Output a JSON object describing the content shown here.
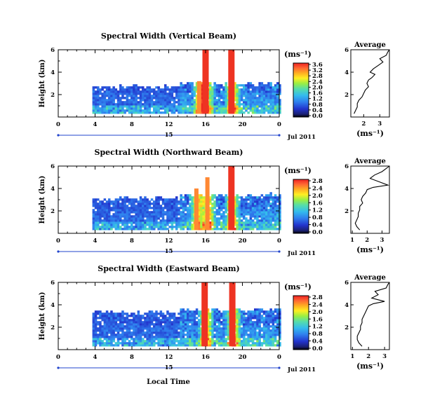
{
  "figure": {
    "xlabel": "Local Time",
    "date_label": "Jul 2011",
    "day_label": "15",
    "x_ticks": [
      "0",
      "4",
      "8",
      "12",
      "16",
      "20",
      "0"
    ],
    "y_ticks": [
      "2",
      "4",
      "6"
    ],
    "ylabel": "Height (km)",
    "unit_label": "(ms⁻¹)",
    "average_title": "Average",
    "colors": {
      "red": "#ee3322",
      "orange": "#ff8833",
      "yellow": "#ffee22",
      "green": "#66dd66",
      "cyan": "#33bbee",
      "blue": "#2255ee",
      "navy": "#1a1f70",
      "black": "#000000"
    }
  },
  "panels": [
    {
      "title": "Spectral Width (Vertical Beam)",
      "colorbar_ticks": [
        "0.0",
        "0.4",
        "0.8",
        "1.2",
        "1.6",
        "2.0",
        "2.4",
        "2.8",
        "3.2",
        "3.6"
      ],
      "avg_ticks": [
        "2",
        "3"
      ]
    },
    {
      "title": "Spectral Width (Northward Beam)",
      "colorbar_ticks": [
        "0.0",
        "0.4",
        "0.8",
        "1.2",
        "1.6",
        "2.0",
        "2.4",
        "2.8"
      ],
      "avg_ticks": [
        "1",
        "2",
        "3"
      ]
    },
    {
      "title": "Spectral Width (Eastward Beam)",
      "colorbar_ticks": [
        "0.0",
        "0.4",
        "0.8",
        "1.2",
        "1.6",
        "2.0",
        "2.4",
        "2.8"
      ],
      "avg_ticks": [
        "1",
        "2",
        "3"
      ]
    }
  ],
  "chart_data": [
    {
      "type": "heatmap",
      "title": "Spectral Width (Vertical Beam)",
      "xlabel": "",
      "ylabel": "Height (km)",
      "x_unit": "local time (h), Jul 15 2011",
      "xlim": [
        0,
        24
      ],
      "ylim": [
        0,
        6
      ],
      "colorbar": {
        "label": "(ms⁻¹)",
        "range": [
          0.0,
          3.6
        ]
      },
      "data_extent": {
        "time": [
          3.7,
          24
        ],
        "height": [
          0.3,
          2.6
        ]
      },
      "high_width_columns": [
        {
          "time": 15.3,
          "height": [
            0.3,
            3.2
          ],
          "width": "1.6-2.4"
        },
        {
          "time": 16.0,
          "height": [
            0.3,
            6.0
          ],
          "width": ">=3.6"
        },
        {
          "time": 18.8,
          "height": [
            0.3,
            6.0
          ],
          "width": ">=3.6"
        }
      ],
      "average_profile": {
        "title": "Average",
        "xlabel": "(ms⁻¹)",
        "xlim": [
          1.2,
          3.6
        ],
        "ylim": [
          0,
          6
        ],
        "x": [
          1.4,
          1.5,
          1.6,
          1.6,
          1.7,
          1.9,
          2.0,
          2.1,
          2.3,
          2.2,
          2.3,
          2.5,
          2.7,
          2.4,
          2.6,
          2.9,
          3.2,
          3.0,
          3.4,
          3.5,
          3.6
        ],
        "y": [
          0.3,
          0.6,
          0.9,
          1.2,
          1.5,
          1.8,
          2.1,
          2.4,
          2.7,
          3.0,
          3.3,
          3.5,
          3.8,
          4.0,
          4.3,
          4.6,
          4.9,
          5.2,
          5.5,
          5.8,
          6.0
        ]
      }
    },
    {
      "type": "heatmap",
      "title": "Spectral Width (Northward Beam)",
      "xlabel": "",
      "ylabel": "Height (km)",
      "x_unit": "local time (h), Jul 15 2011",
      "xlim": [
        0,
        24
      ],
      "ylim": [
        0,
        6
      ],
      "colorbar": {
        "label": "(ms⁻¹)",
        "range": [
          0.0,
          2.8
        ]
      },
      "data_extent": {
        "time": [
          3.7,
          24
        ],
        "height": [
          0.3,
          3.0
        ]
      },
      "high_width_columns": [
        {
          "time": 15.0,
          "height": [
            0.3,
            4.0
          ],
          "width": "1.6-2.4"
        },
        {
          "time": 16.2,
          "height": [
            0.3,
            5.0
          ],
          "width": "2.0-2.8"
        },
        {
          "time": 18.8,
          "height": [
            0.3,
            6.0
          ],
          "width": ">=2.8"
        }
      ],
      "average_profile": {
        "title": "Average",
        "xlabel": "(ms⁻¹)",
        "xlim": [
          0.9,
          3.5
        ],
        "ylim": [
          0,
          6
        ],
        "x": [
          1.5,
          1.3,
          1.2,
          1.3,
          1.4,
          1.4,
          1.5,
          1.5,
          1.7,
          1.6,
          1.7,
          1.9,
          2.0,
          2.4,
          3.4,
          2.8,
          2.2,
          2.5,
          3.0,
          3.3,
          3.5
        ],
        "y": [
          0.3,
          0.6,
          0.9,
          1.2,
          1.5,
          1.8,
          2.1,
          2.4,
          2.7,
          3.0,
          3.3,
          3.6,
          3.9,
          4.1,
          4.3,
          4.6,
          4.9,
          5.2,
          5.5,
          5.8,
          6.0
        ]
      }
    },
    {
      "type": "heatmap",
      "title": "Spectral Width (Eastward Beam)",
      "xlabel": "Local Time",
      "ylabel": "Height (km)",
      "x_unit": "local time (h), Jul 15 2011",
      "xlim": [
        0,
        24
      ],
      "ylim": [
        0,
        6
      ],
      "colorbar": {
        "label": "(ms⁻¹)",
        "range": [
          0.0,
          2.8
        ]
      },
      "data_extent": {
        "time": [
          3.7,
          24
        ],
        "height": [
          0.3,
          3.2
        ]
      },
      "high_width_columns": [
        {
          "time": 15.9,
          "height": [
            0.3,
            6.0
          ],
          "width": ">=2.8"
        },
        {
          "time": 18.9,
          "height": [
            0.3,
            6.0
          ],
          "width": ">=2.8"
        }
      ],
      "average_profile": {
        "title": "Average",
        "xlabel": "(ms⁻¹)",
        "xlim": [
          0.9,
          3.3
        ],
        "ylim": [
          0,
          6
        ],
        "x": [
          1.6,
          1.4,
          1.3,
          1.3,
          1.4,
          1.5,
          1.5,
          1.6,
          1.6,
          1.7,
          1.8,
          1.9,
          2.0,
          2.3,
          3.0,
          2.2,
          2.6,
          2.4,
          3.1,
          3.2,
          3.3
        ],
        "y": [
          0.3,
          0.6,
          0.9,
          1.2,
          1.5,
          1.8,
          2.1,
          2.4,
          2.7,
          3.0,
          3.3,
          3.6,
          3.9,
          4.1,
          4.3,
          4.6,
          4.9,
          5.2,
          5.5,
          5.8,
          6.0
        ]
      }
    }
  ]
}
